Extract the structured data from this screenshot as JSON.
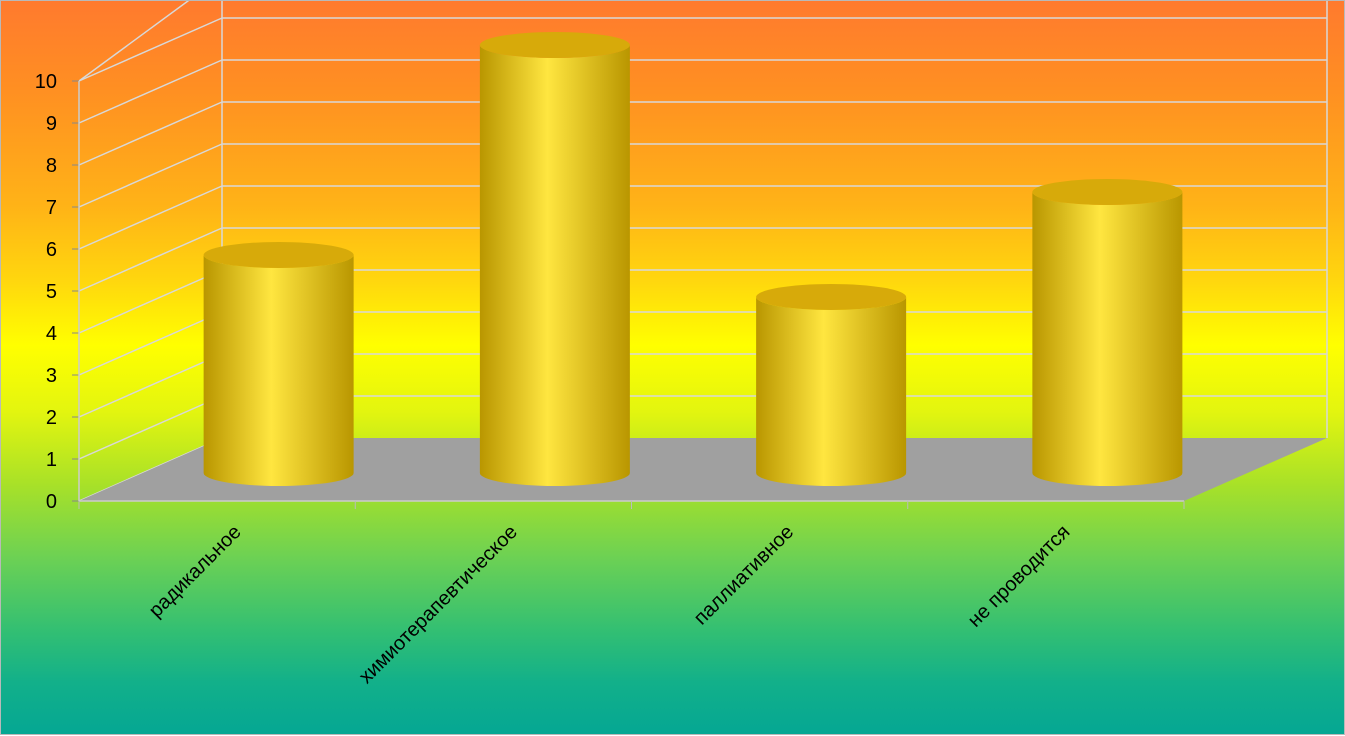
{
  "chart_data": {
    "type": "bar",
    "style": "3d-cylinder",
    "categories": [
      "радикальное",
      "химиотерапевтическое",
      "паллиативное",
      "не проводится"
    ],
    "values": [
      5,
      10,
      4,
      6.5
    ],
    "ylim": [
      0,
      10
    ],
    "yticks": [
      "0",
      "1",
      "2",
      "3",
      "4",
      "5",
      "6",
      "7",
      "8",
      "9",
      "10"
    ],
    "grid": true,
    "legend": "none",
    "colors": {
      "bar_light": "#ffe640",
      "bar_mid": "#f2c30a",
      "bar_dark": "#b99600",
      "bar_top": "#d7aa0a",
      "floor": "#a0a0a0",
      "grid": "#d8d8d8"
    }
  }
}
